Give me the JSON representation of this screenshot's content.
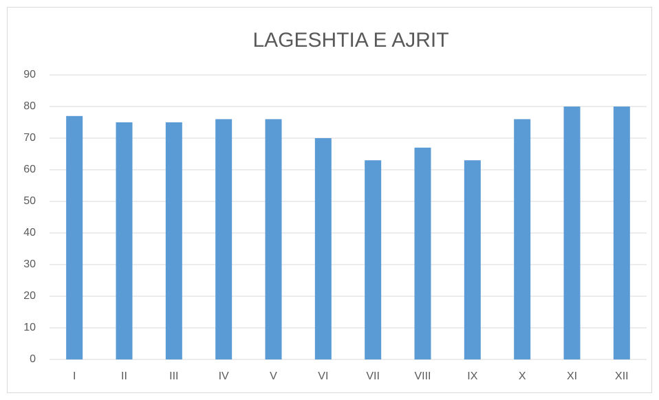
{
  "chart_data": {
    "type": "bar",
    "title": "LAGESHTIA E AJRIT",
    "categories": [
      "I",
      "II",
      "III",
      "IV",
      "V",
      "VI",
      "VII",
      "VIII",
      "IX",
      "X",
      "XI",
      "XII"
    ],
    "values": [
      77,
      75,
      75,
      76,
      76,
      70,
      63,
      67,
      63,
      76,
      80,
      80
    ],
    "color": "#5b9bd5",
    "ylim": [
      0,
      90
    ],
    "yticks": [
      0,
      10,
      20,
      30,
      40,
      50,
      60,
      70,
      80,
      90
    ],
    "grid": true
  }
}
